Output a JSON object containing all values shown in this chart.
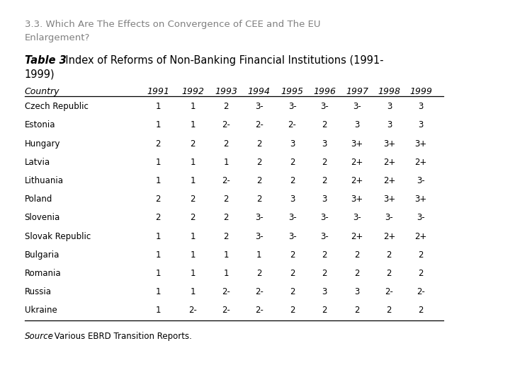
{
  "title_line1": "3.3. Which Are The Effects on Convergence of CEE and The EU",
  "title_line2": "Enlargement?",
  "table_title_bold": "Table 3",
  "table_title_rest": ". Index of Reforms of Non-Banking Financial Institutions (1991-",
  "table_title_line2": "1999)",
  "header_country": "Country",
  "years": [
    "1991",
    "1992",
    "1993",
    "1994",
    "1995",
    "1996",
    "1997",
    "1998",
    "1999"
  ],
  "rows": [
    [
      "Czech Republic",
      "1",
      "1",
      "2",
      "3-",
      "3-",
      "3-",
      "3-",
      "3",
      "3"
    ],
    [
      "Estonia",
      "1",
      "1",
      "2-",
      "2-",
      "2-",
      "2",
      "3",
      "3",
      "3"
    ],
    [
      "Hungary",
      "2",
      "2",
      "2",
      "2",
      "3",
      "3",
      "3+",
      "3+",
      "3+"
    ],
    [
      "Latvia",
      "1",
      "1",
      "1",
      "2",
      "2",
      "2",
      "2+",
      "2+",
      "2+"
    ],
    [
      "Lithuania",
      "1",
      "1",
      "2-",
      "2",
      "2",
      "2",
      "2+",
      "2+",
      "3-"
    ],
    [
      "Poland",
      "2",
      "2",
      "2",
      "2",
      "3",
      "3",
      "3+",
      "3+",
      "3+"
    ],
    [
      "Slovenia",
      "2",
      "2",
      "2",
      "3-",
      "3-",
      "3-",
      "3-",
      "3-",
      "3-"
    ],
    [
      "Slovak Republic",
      "1",
      "1",
      "2",
      "3-",
      "3-",
      "3-",
      "2+",
      "2+",
      "2+"
    ],
    [
      "Bulgaria",
      "1",
      "1",
      "1",
      "1",
      "2",
      "2",
      "2",
      "2",
      "2"
    ],
    [
      "Romania",
      "1",
      "1",
      "1",
      "2",
      "2",
      "2",
      "2",
      "2",
      "2"
    ],
    [
      "Russia",
      "1",
      "1",
      "2-",
      "2-",
      "2",
      "3",
      "3",
      "2-",
      "2-"
    ],
    [
      "Ukraine",
      "1",
      "2-",
      "2-",
      "2-",
      "2",
      "2",
      "2",
      "2",
      "2"
    ]
  ],
  "source_italic": "Source",
  "source_rest": ": Various EBRD Transition Reports.",
  "bg_color": "#ffffff",
  "text_color": "#000000",
  "title_color": "#808080",
  "font_size_title": 9.5,
  "font_size_table_title": 10.5,
  "font_size_header": 9.0,
  "font_size_body": 8.5,
  "font_size_source": 8.5
}
